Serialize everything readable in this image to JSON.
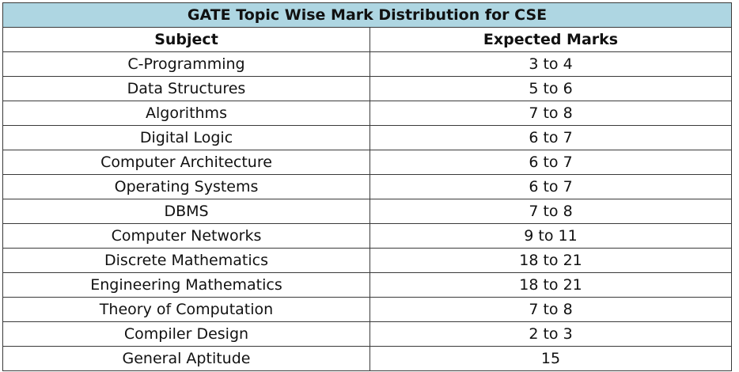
{
  "table": {
    "title": "GATE Topic Wise Mark Distribution for CSE",
    "headers": [
      "Subject",
      "Expected Marks"
    ],
    "rows": [
      [
        "C-Programming",
        "3 to 4"
      ],
      [
        "Data Structures",
        "5 to 6"
      ],
      [
        "Algorithms",
        "7 to 8"
      ],
      [
        "Digital Logic",
        "6 to 7"
      ],
      [
        "Computer Architecture",
        "6 to 7"
      ],
      [
        "Operating Systems",
        "6 to 7"
      ],
      [
        "DBMS",
        "7 to 8"
      ],
      [
        "Computer Networks",
        "9 to 11"
      ],
      [
        "Discrete Mathematics",
        "18 to 21"
      ],
      [
        "Engineering Mathematics",
        "18 to 21"
      ],
      [
        "Theory of Computation",
        "7 to 8"
      ],
      [
        "Compiler Design",
        "2 to 3"
      ],
      [
        "General Aptitude",
        "15"
      ]
    ]
  },
  "colors": {
    "title_background": "#aed6e2",
    "border": "#3a3a3a"
  }
}
